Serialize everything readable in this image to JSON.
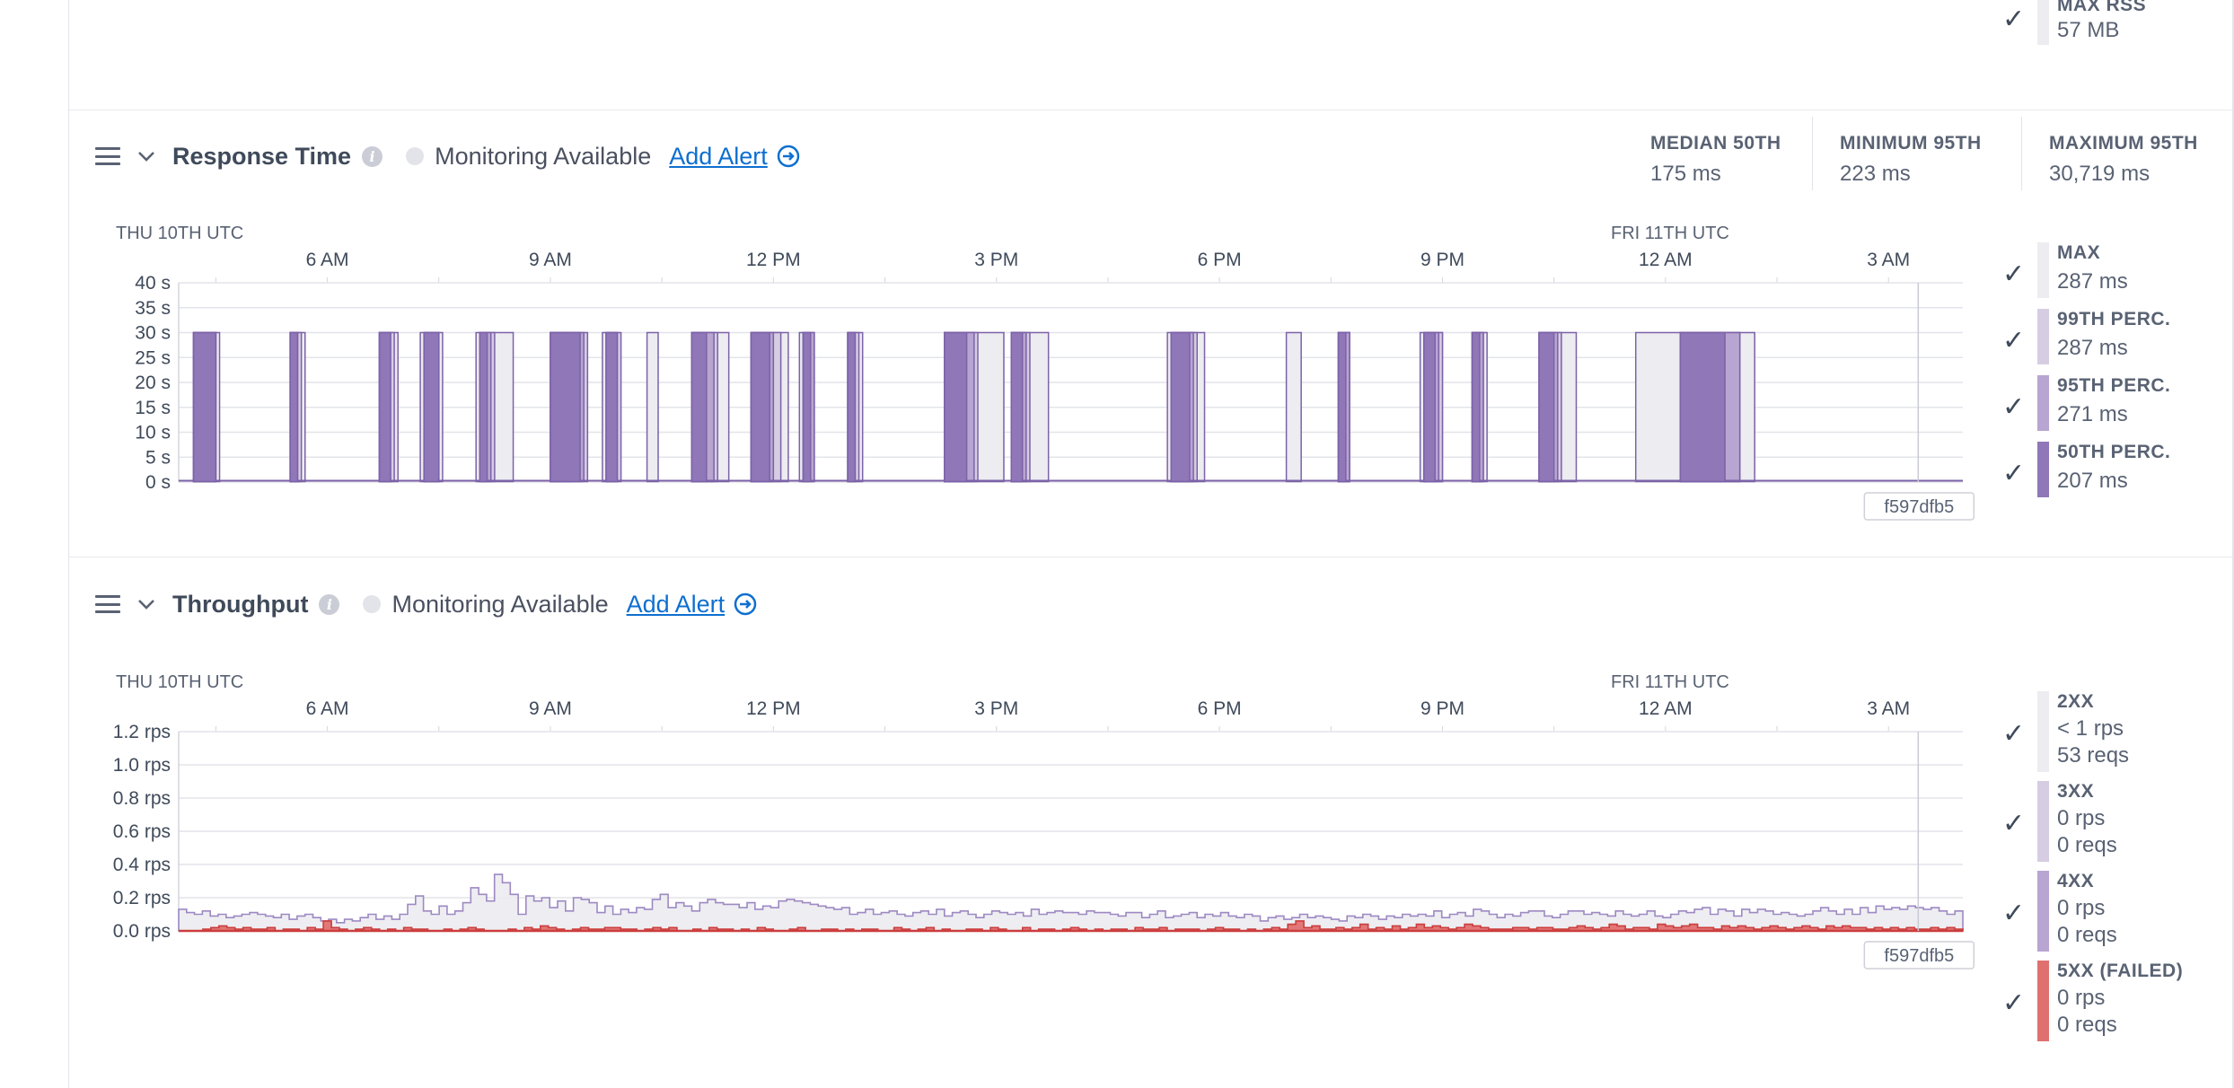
{
  "top_legend": {
    "label": "MAX RSS",
    "value": "57 MB"
  },
  "response_time": {
    "title": "Response Time",
    "monitoring": "Monitoring Available",
    "add_alert": "Add Alert",
    "stats": [
      {
        "label": "MEDIAN 50TH",
        "value": "175 ms"
      },
      {
        "label": "MINIMUM 95TH",
        "value": "223 ms"
      },
      {
        "label": "MAXIMUM 95TH",
        "value": "30,719 ms"
      }
    ],
    "legend": [
      {
        "label": "MAX",
        "value": "287 ms",
        "color": "#ececf1"
      },
      {
        "label": "99TH PERC.",
        "value": "287 ms",
        "color": "#d7cde3"
      },
      {
        "label": "95TH PERC.",
        "value": "271 ms",
        "color": "#b8a5d1"
      },
      {
        "label": "50TH PERC.",
        "value": "207 ms",
        "color": "#8f77b8"
      }
    ]
  },
  "throughput": {
    "title": "Throughput",
    "monitoring": "Monitoring Available",
    "add_alert": "Add Alert",
    "legend": [
      {
        "label": "2XX",
        "rate": "< 1 rps",
        "reqs": "53 reqs",
        "color": "#ececf1"
      },
      {
        "label": "3XX",
        "rate": "0 rps",
        "reqs": "0 reqs",
        "color": "#d7cde3"
      },
      {
        "label": "4XX",
        "rate": "0 rps",
        "reqs": "0 reqs",
        "color": "#b8a5d1"
      },
      {
        "label": "5XX (FAILED)",
        "rate": "0 rps",
        "reqs": "0 reqs",
        "color": "#e07070"
      }
    ]
  },
  "chart_data": [
    {
      "type": "area",
      "title": "Response Time",
      "date_labels": [
        "THU 10TH UTC",
        "FRI 11TH UTC"
      ],
      "time_ticks": [
        "6 AM",
        "9 AM",
        "12 PM",
        "3 PM",
        "6 PM",
        "9 PM",
        "12 AM",
        "3 AM"
      ],
      "y_ticks": [
        "40 s",
        "35 s",
        "30 s",
        "25 s",
        "20 s",
        "15 s",
        "10 s",
        "5 s",
        "0 s"
      ],
      "ylim": [
        0,
        40
      ],
      "y_unit": "s",
      "release_marker": "f597dfb5",
      "x_range_hours": [
        4.0,
        28.0
      ],
      "series": [
        {
          "name": "MAX",
          "color": "#ececf1",
          "baseline": 0.1,
          "peak": 30,
          "spikes": [
            [
              4.2,
              4.55
            ],
            [
              5.5,
              5.7
            ],
            [
              6.7,
              6.95
            ],
            [
              7.25,
              7.55
            ],
            [
              8.0,
              8.5
            ],
            [
              9.0,
              9.3
            ],
            [
              9.7,
              9.9
            ],
            [
              10.3,
              10.45
            ],
            [
              10.9,
              11.4
            ],
            [
              11.7,
              12.2
            ],
            [
              12.35,
              12.5
            ],
            [
              13.0,
              13.2
            ],
            [
              14.3,
              15.1
            ],
            [
              15.2,
              15.7
            ],
            [
              17.3,
              17.8
            ],
            [
              18.9,
              19.1
            ],
            [
              19.6,
              19.75
            ],
            [
              20.7,
              21.0
            ],
            [
              21.4,
              21.6
            ],
            [
              22.3,
              22.8
            ],
            [
              23.6,
              25.2
            ]
          ]
        },
        {
          "name": "99TH PERC.",
          "color": "#d7cde3",
          "baseline": 0.1,
          "peak": 30,
          "spikes": [
            [
              4.2,
              4.5
            ],
            [
              5.5,
              5.65
            ],
            [
              6.7,
              6.9
            ],
            [
              7.3,
              7.5
            ],
            [
              8.05,
              8.25
            ],
            [
              9.0,
              9.5
            ],
            [
              9.75,
              9.95
            ],
            [
              10.9,
              11.25
            ],
            [
              11.7,
              12.1
            ],
            [
              12.4,
              12.55
            ],
            [
              13.0,
              13.15
            ],
            [
              14.3,
              14.75
            ],
            [
              15.2,
              15.45
            ],
            [
              17.35,
              17.7
            ],
            [
              19.6,
              19.75
            ],
            [
              20.75,
              21.0
            ],
            [
              21.4,
              21.55
            ],
            [
              22.3,
              22.6
            ],
            [
              24.2,
              25.0
            ]
          ]
        },
        {
          "name": "95TH PERC.",
          "color": "#b8a5d1",
          "baseline": 0.1,
          "peak": 30,
          "spikes": [
            [
              4.2,
              4.5
            ],
            [
              5.5,
              5.6
            ],
            [
              6.7,
              6.85
            ],
            [
              7.3,
              7.5
            ],
            [
              8.05,
              8.2
            ],
            [
              9.0,
              9.45
            ],
            [
              9.75,
              9.9
            ],
            [
              10.9,
              11.2
            ],
            [
              11.7,
              12.0
            ],
            [
              12.4,
              12.55
            ],
            [
              13.0,
              13.1
            ],
            [
              14.3,
              14.7
            ],
            [
              15.2,
              15.4
            ],
            [
              17.35,
              17.65
            ],
            [
              19.6,
              19.75
            ],
            [
              20.75,
              20.95
            ],
            [
              21.4,
              21.55
            ],
            [
              22.3,
              22.55
            ],
            [
              24.2,
              25.0
            ]
          ]
        },
        {
          "name": "50TH PERC.",
          "color": "#8f77b8",
          "baseline": 0.1,
          "peak": 30,
          "spikes": [
            [
              4.2,
              4.5
            ],
            [
              5.5,
              5.6
            ],
            [
              6.7,
              6.85
            ],
            [
              7.3,
              7.5
            ],
            [
              8.05,
              8.15
            ],
            [
              9.0,
              9.4
            ],
            [
              9.75,
              9.9
            ],
            [
              10.9,
              11.1
            ],
            [
              11.7,
              11.95
            ],
            [
              12.4,
              12.5
            ],
            [
              13.0,
              13.1
            ],
            [
              14.3,
              14.6
            ],
            [
              15.2,
              15.35
            ],
            [
              17.35,
              17.6
            ],
            [
              19.6,
              19.7
            ],
            [
              20.75,
              20.9
            ],
            [
              21.4,
              21.5
            ],
            [
              22.3,
              22.5
            ],
            [
              24.2,
              24.8
            ]
          ]
        }
      ]
    },
    {
      "type": "area",
      "title": "Throughput",
      "date_labels": [
        "THU 10TH UTC",
        "FRI 11TH UTC"
      ],
      "time_ticks": [
        "6 AM",
        "9 AM",
        "12 PM",
        "3 PM",
        "6 PM",
        "9 PM",
        "12 AM",
        "3 AM"
      ],
      "y_ticks": [
        "1.2 rps",
        "1.0 rps",
        "0.8 rps",
        "0.6 rps",
        "0.4 rps",
        "0.2 rps",
        "0.0 rps"
      ],
      "ylim": [
        0,
        1.2
      ],
      "y_unit": "rps",
      "release_marker": "f597dfb5",
      "x_range_hours": [
        4.0,
        28.0
      ],
      "series": [
        {
          "name": "2XX",
          "color": "#ececf1",
          "stroke": "#9d89c2",
          "values": [
            0.13,
            0.11,
            0.1,
            0.12,
            0.09,
            0.1,
            0.08,
            0.09,
            0.1,
            0.11,
            0.1,
            0.09,
            0.08,
            0.1,
            0.07,
            0.09,
            0.1,
            0.08,
            0.06,
            0.07,
            0.05,
            0.07,
            0.06,
            0.08,
            0.1,
            0.07,
            0.09,
            0.07,
            0.1,
            0.16,
            0.21,
            0.12,
            0.1,
            0.15,
            0.1,
            0.12,
            0.17,
            0.26,
            0.22,
            0.18,
            0.34,
            0.29,
            0.22,
            0.1,
            0.21,
            0.18,
            0.2,
            0.14,
            0.18,
            0.12,
            0.2,
            0.19,
            0.17,
            0.11,
            0.15,
            0.1,
            0.13,
            0.11,
            0.14,
            0.13,
            0.19,
            0.22,
            0.14,
            0.17,
            0.15,
            0.12,
            0.17,
            0.19,
            0.17,
            0.16,
            0.16,
            0.14,
            0.17,
            0.13,
            0.15,
            0.14,
            0.18,
            0.19,
            0.18,
            0.17,
            0.16,
            0.15,
            0.14,
            0.13,
            0.14,
            0.1,
            0.11,
            0.13,
            0.1,
            0.11,
            0.12,
            0.1,
            0.09,
            0.11,
            0.12,
            0.1,
            0.13,
            0.09,
            0.11,
            0.12,
            0.1,
            0.08,
            0.1,
            0.12,
            0.11,
            0.1,
            0.11,
            0.09,
            0.13,
            0.1,
            0.11,
            0.12,
            0.11,
            0.11,
            0.1,
            0.12,
            0.11,
            0.11,
            0.1,
            0.09,
            0.11,
            0.11,
            0.08,
            0.1,
            0.12,
            0.08,
            0.09,
            0.1,
            0.11,
            0.08,
            0.1,
            0.09,
            0.11,
            0.09,
            0.08,
            0.1,
            0.09,
            0.06,
            0.08,
            0.09,
            0.07,
            0.08,
            0.1,
            0.08,
            0.09,
            0.08,
            0.07,
            0.06,
            0.09,
            0.08,
            0.1,
            0.09,
            0.07,
            0.09,
            0.08,
            0.1,
            0.09,
            0.1,
            0.09,
            0.12,
            0.08,
            0.1,
            0.11,
            0.09,
            0.13,
            0.12,
            0.1,
            0.08,
            0.1,
            0.09,
            0.11,
            0.12,
            0.12,
            0.09,
            0.08,
            0.1,
            0.12,
            0.12,
            0.1,
            0.11,
            0.1,
            0.09,
            0.12,
            0.1,
            0.09,
            0.1,
            0.12,
            0.09,
            0.08,
            0.1,
            0.12,
            0.11,
            0.13,
            0.14,
            0.1,
            0.13,
            0.12,
            0.09,
            0.13,
            0.11,
            0.13,
            0.12,
            0.1,
            0.11,
            0.1,
            0.09,
            0.1,
            0.12,
            0.14,
            0.12,
            0.1,
            0.13,
            0.1,
            0.14,
            0.11,
            0.15,
            0.13,
            0.14,
            0.13,
            0.15,
            0.14,
            0.13,
            0.14,
            0.12,
            0.1,
            0.12
          ]
        },
        {
          "name": "3XX",
          "color": "#d7cde3",
          "values": []
        },
        {
          "name": "4XX",
          "color": "#b8a5d1",
          "values": []
        },
        {
          "name": "5XX (FAILED)",
          "color": "#e07070",
          "stroke": "#cc3d3d",
          "values": [
            0,
            0,
            0,
            0.01,
            0.02,
            0.03,
            0.02,
            0.01,
            0.02,
            0.01,
            0.01,
            0.02,
            0,
            0.01,
            0.01,
            0,
            0.02,
            0.01,
            0.06,
            0.02,
            0.01,
            0,
            0.01,
            0.02,
            0.01,
            0,
            0.01,
            0,
            0.02,
            0.01,
            0.01,
            0,
            0,
            0.01,
            0,
            0.01,
            0.02,
            0.01,
            0,
            0,
            0,
            0.01,
            0,
            0.02,
            0.01,
            0.03,
            0.02,
            0.01,
            0,
            0.01,
            0.02,
            0.01,
            0.01,
            0.02,
            0.02,
            0.01,
            0.01,
            0,
            0.01,
            0.02,
            0.01,
            0.02,
            0,
            0,
            0.01,
            0,
            0.02,
            0.01,
            0.01,
            0,
            0.01,
            0,
            0.02,
            0.01,
            0,
            0,
            0.01,
            0.02,
            0,
            0,
            0.01,
            0.01,
            0,
            0.01,
            0,
            0.01,
            0.01,
            0,
            0,
            0.02,
            0.01,
            0,
            0.01,
            0.02,
            0,
            0.01,
            0,
            0,
            0.01,
            0.01,
            0,
            0.02,
            0.01,
            0,
            0,
            0.02,
            0,
            0.01,
            0.01,
            0,
            0.01,
            0.02,
            0.01,
            0,
            0.01,
            0,
            0.01,
            0.01,
            0,
            0.02,
            0.01,
            0.01,
            0.02,
            0,
            0.01,
            0.01,
            0.01,
            0,
            0.01,
            0.02,
            0.01,
            0.01,
            0,
            0.01,
            0,
            0.01,
            0.02,
            0.01,
            0.04,
            0.06,
            0.02,
            0.03,
            0.01,
            0.01,
            0.02,
            0.01,
            0.02,
            0.04,
            0.01,
            0.02,
            0.01,
            0.03,
            0.01,
            0.02,
            0.04,
            0.02,
            0.03,
            0.02,
            0.01,
            0.02,
            0.04,
            0.03,
            0.02,
            0.01,
            0.01,
            0.01,
            0.02,
            0.02,
            0.01,
            0.02,
            0.02,
            0.01,
            0.01,
            0.02,
            0.03,
            0.02,
            0.01,
            0.02,
            0.04,
            0.03,
            0.01,
            0.02,
            0.02,
            0.01,
            0.04,
            0.03,
            0.02,
            0.03,
            0.04,
            0.02,
            0.02,
            0.01,
            0.03,
            0.02,
            0.03,
            0.02,
            0.01,
            0.02,
            0.03,
            0.02,
            0.01,
            0.02,
            0.03,
            0.02,
            0.01,
            0.03,
            0.02,
            0.03,
            0.02,
            0.02,
            0.01,
            0.02,
            0.01,
            0.02,
            0.01,
            0.02,
            0.01,
            0.01,
            0.02,
            0.01,
            0.02,
            0.01
          ]
        }
      ]
    }
  ]
}
